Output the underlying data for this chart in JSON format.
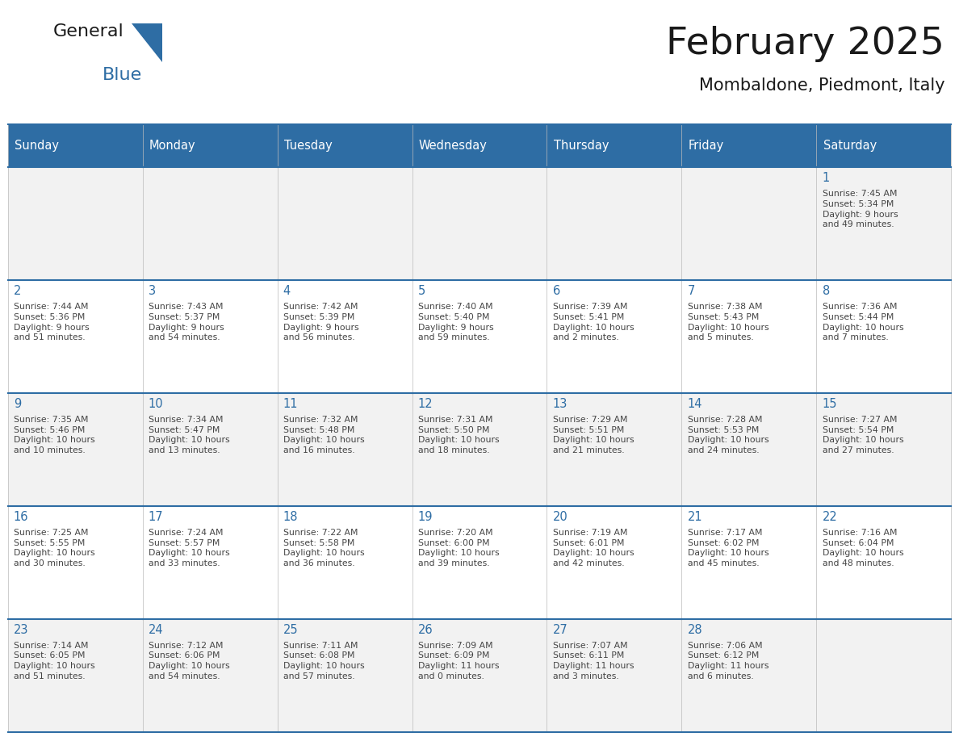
{
  "title": "February 2025",
  "subtitle": "Mombaldone, Piedmont, Italy",
  "header_bg": "#2E6DA4",
  "header_text": "#FFFFFF",
  "cell_bg_odd": "#F2F2F2",
  "cell_bg_even": "#FFFFFF",
  "day_number_color": "#2E6DA4",
  "cell_text_color": "#444444",
  "border_color": "#2E6DA4",
  "days_of_week": [
    "Sunday",
    "Monday",
    "Tuesday",
    "Wednesday",
    "Thursday",
    "Friday",
    "Saturday"
  ],
  "weeks": [
    [
      {
        "day": null,
        "info": null
      },
      {
        "day": null,
        "info": null
      },
      {
        "day": null,
        "info": null
      },
      {
        "day": null,
        "info": null
      },
      {
        "day": null,
        "info": null
      },
      {
        "day": null,
        "info": null
      },
      {
        "day": "1",
        "info": "Sunrise: 7:45 AM\nSunset: 5:34 PM\nDaylight: 9 hours\nand 49 minutes."
      }
    ],
    [
      {
        "day": "2",
        "info": "Sunrise: 7:44 AM\nSunset: 5:36 PM\nDaylight: 9 hours\nand 51 minutes."
      },
      {
        "day": "3",
        "info": "Sunrise: 7:43 AM\nSunset: 5:37 PM\nDaylight: 9 hours\nand 54 minutes."
      },
      {
        "day": "4",
        "info": "Sunrise: 7:42 AM\nSunset: 5:39 PM\nDaylight: 9 hours\nand 56 minutes."
      },
      {
        "day": "5",
        "info": "Sunrise: 7:40 AM\nSunset: 5:40 PM\nDaylight: 9 hours\nand 59 minutes."
      },
      {
        "day": "6",
        "info": "Sunrise: 7:39 AM\nSunset: 5:41 PM\nDaylight: 10 hours\nand 2 minutes."
      },
      {
        "day": "7",
        "info": "Sunrise: 7:38 AM\nSunset: 5:43 PM\nDaylight: 10 hours\nand 5 minutes."
      },
      {
        "day": "8",
        "info": "Sunrise: 7:36 AM\nSunset: 5:44 PM\nDaylight: 10 hours\nand 7 minutes."
      }
    ],
    [
      {
        "day": "9",
        "info": "Sunrise: 7:35 AM\nSunset: 5:46 PM\nDaylight: 10 hours\nand 10 minutes."
      },
      {
        "day": "10",
        "info": "Sunrise: 7:34 AM\nSunset: 5:47 PM\nDaylight: 10 hours\nand 13 minutes."
      },
      {
        "day": "11",
        "info": "Sunrise: 7:32 AM\nSunset: 5:48 PM\nDaylight: 10 hours\nand 16 minutes."
      },
      {
        "day": "12",
        "info": "Sunrise: 7:31 AM\nSunset: 5:50 PM\nDaylight: 10 hours\nand 18 minutes."
      },
      {
        "day": "13",
        "info": "Sunrise: 7:29 AM\nSunset: 5:51 PM\nDaylight: 10 hours\nand 21 minutes."
      },
      {
        "day": "14",
        "info": "Sunrise: 7:28 AM\nSunset: 5:53 PM\nDaylight: 10 hours\nand 24 minutes."
      },
      {
        "day": "15",
        "info": "Sunrise: 7:27 AM\nSunset: 5:54 PM\nDaylight: 10 hours\nand 27 minutes."
      }
    ],
    [
      {
        "day": "16",
        "info": "Sunrise: 7:25 AM\nSunset: 5:55 PM\nDaylight: 10 hours\nand 30 minutes."
      },
      {
        "day": "17",
        "info": "Sunrise: 7:24 AM\nSunset: 5:57 PM\nDaylight: 10 hours\nand 33 minutes."
      },
      {
        "day": "18",
        "info": "Sunrise: 7:22 AM\nSunset: 5:58 PM\nDaylight: 10 hours\nand 36 minutes."
      },
      {
        "day": "19",
        "info": "Sunrise: 7:20 AM\nSunset: 6:00 PM\nDaylight: 10 hours\nand 39 minutes."
      },
      {
        "day": "20",
        "info": "Sunrise: 7:19 AM\nSunset: 6:01 PM\nDaylight: 10 hours\nand 42 minutes."
      },
      {
        "day": "21",
        "info": "Sunrise: 7:17 AM\nSunset: 6:02 PM\nDaylight: 10 hours\nand 45 minutes."
      },
      {
        "day": "22",
        "info": "Sunrise: 7:16 AM\nSunset: 6:04 PM\nDaylight: 10 hours\nand 48 minutes."
      }
    ],
    [
      {
        "day": "23",
        "info": "Sunrise: 7:14 AM\nSunset: 6:05 PM\nDaylight: 10 hours\nand 51 minutes."
      },
      {
        "day": "24",
        "info": "Sunrise: 7:12 AM\nSunset: 6:06 PM\nDaylight: 10 hours\nand 54 minutes."
      },
      {
        "day": "25",
        "info": "Sunrise: 7:11 AM\nSunset: 6:08 PM\nDaylight: 10 hours\nand 57 minutes."
      },
      {
        "day": "26",
        "info": "Sunrise: 7:09 AM\nSunset: 6:09 PM\nDaylight: 11 hours\nand 0 minutes."
      },
      {
        "day": "27",
        "info": "Sunrise: 7:07 AM\nSunset: 6:11 PM\nDaylight: 11 hours\nand 3 minutes."
      },
      {
        "day": "28",
        "info": "Sunrise: 7:06 AM\nSunset: 6:12 PM\nDaylight: 11 hours\nand 6 minutes."
      },
      {
        "day": null,
        "info": null
      }
    ]
  ],
  "logo_general_color": "#1a1a1a",
  "logo_blue_color": "#2E6DA4",
  "logo_triangle_color": "#2E6DA4",
  "title_color": "#1a1a1a",
  "subtitle_color": "#1a1a1a"
}
